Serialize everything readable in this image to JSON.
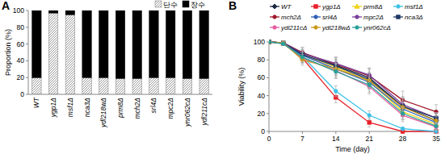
{
  "chart_data": [
    {
      "type": "bar",
      "title": "A",
      "stacked": true,
      "ylabel": "Proportion (%)",
      "categories": [
        "WT",
        "ygp1Δ",
        "msf1Δ",
        "nca3Δ",
        "ydl218wΔ",
        "prm8Δ",
        "mch2Δ",
        "srl4Δ",
        "mpc2Δ",
        "ynr062cΔ",
        "ydl211cΔ"
      ],
      "series": [
        {
          "name": "단수",
          "color": "#9a9a9a",
          "values": [
            20,
            97,
            95,
            20,
            20,
            19,
            19,
            20,
            20,
            19,
            19
          ]
        },
        {
          "name": "장수",
          "color": "#000000",
          "values": [
            80,
            3,
            5,
            80,
            80,
            81,
            81,
            80,
            80,
            81,
            81
          ]
        }
      ],
      "ylim": [
        0,
        100
      ],
      "yticks": [
        0,
        20,
        40,
        60,
        80,
        100
      ],
      "grid": false
    },
    {
      "type": "line",
      "title": "B",
      "ylabel": "Viability (%)",
      "xlabel": "Time (day)",
      "x": [
        0,
        3,
        7,
        14,
        21,
        28,
        35
      ],
      "series": [
        {
          "name": "WT",
          "color": "#1f2a44",
          "marker": "diamond",
          "values": [
            100,
            99,
            88,
            74,
            60,
            28,
            12
          ],
          "errors": [
            0,
            2,
            6,
            8,
            10,
            10,
            8
          ]
        },
        {
          "name": "ygp1Δ",
          "color": "#e8202a",
          "marker": "square",
          "values": [
            100,
            98,
            82,
            38,
            10,
            0,
            0
          ],
          "errors": [
            0,
            2,
            5,
            6,
            5,
            0,
            0
          ]
        },
        {
          "name": "prm8Δ",
          "color": "#f2d21b",
          "marker": "triangle",
          "values": [
            100,
            99,
            86,
            72,
            56,
            22,
            8
          ],
          "errors": [
            0,
            2,
            5,
            8,
            8,
            8,
            5
          ]
        },
        {
          "name": "msf1Δ",
          "color": "#3cc1e8",
          "marker": "circle",
          "values": [
            100,
            98,
            84,
            45,
            18,
            3,
            0
          ],
          "errors": [
            0,
            2,
            5,
            6,
            5,
            2,
            0
          ]
        },
        {
          "name": "mch2Δ",
          "color": "#a0182a",
          "marker": "circle",
          "values": [
            100,
            99,
            88,
            75,
            62,
            35,
            22
          ],
          "errors": [
            0,
            2,
            6,
            8,
            8,
            10,
            8
          ]
        },
        {
          "name": "srl4Δ",
          "color": "#2f5fb8",
          "marker": "circle",
          "values": [
            100,
            99,
            85,
            70,
            55,
            25,
            10
          ],
          "errors": [
            0,
            2,
            6,
            7,
            8,
            8,
            5
          ]
        },
        {
          "name": "mpc2Δ",
          "color": "#7a3e9a",
          "marker": "circle",
          "values": [
            100,
            99,
            87,
            76,
            63,
            30,
            15
          ],
          "errors": [
            0,
            2,
            5,
            7,
            8,
            9,
            6
          ]
        },
        {
          "name": "nca3Δ",
          "color": "#1f3864",
          "marker": "square",
          "values": [
            100,
            99,
            86,
            73,
            58,
            28,
            15
          ],
          "errors": [
            0,
            2,
            5,
            7,
            8,
            9,
            6
          ]
        },
        {
          "name": "ydl211cΔ",
          "color": "#e75aa0",
          "marker": "circle",
          "values": [
            100,
            99,
            82,
            68,
            50,
            18,
            5
          ],
          "errors": [
            0,
            2,
            6,
            8,
            8,
            7,
            4
          ]
        },
        {
          "name": "ydl218wΔ",
          "color": "#c99a1c",
          "marker": "circle",
          "values": [
            100,
            99,
            80,
            70,
            57,
            27,
            12
          ],
          "errors": [
            0,
            2,
            6,
            8,
            8,
            8,
            5
          ]
        },
        {
          "name": "ynr062cΔ",
          "color": "#2aa198",
          "marker": "circle",
          "values": [
            100,
            98,
            83,
            67,
            52,
            20,
            6
          ],
          "errors": [
            0,
            2,
            6,
            8,
            8,
            7,
            4
          ]
        }
      ],
      "xlim": [
        0,
        35
      ],
      "xticks": [
        0,
        7,
        14,
        21,
        28,
        35
      ],
      "ylim": [
        0,
        100
      ],
      "yticks": [
        0,
        20,
        40,
        60,
        80,
        100
      ],
      "grid": false,
      "legend": "top"
    }
  ]
}
